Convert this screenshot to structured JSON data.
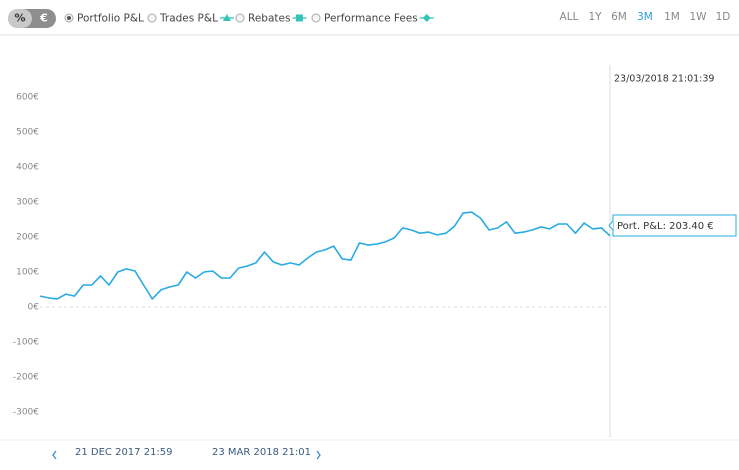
{
  "toggle": {
    "options": [
      "%",
      "€"
    ],
    "active": 0
  },
  "legend": {
    "items": [
      "Portfolio P&L",
      "Trades P&L",
      "Rebates",
      "Performance Fees"
    ],
    "selected": 0
  },
  "ranges": {
    "options": [
      "ALL",
      "1Y",
      "6M",
      "3M",
      "1M",
      "1W",
      "1D"
    ],
    "active": 3
  },
  "chart_data": {
    "type": "line",
    "series": [
      {
        "color": "#29abe2",
        "values": [
          31,
          26,
          23,
          37,
          31,
          63,
          63,
          89,
          63,
          100,
          109,
          103,
          63,
          23,
          49,
          57,
          63,
          100,
          83,
          100,
          103,
          83,
          83,
          111,
          117,
          126,
          157,
          129,
          120,
          126,
          120,
          140,
          157,
          163,
          174,
          137,
          134,
          183,
          177,
          180,
          186,
          197,
          226,
          220,
          211,
          214,
          206,
          211,
          231,
          269,
          271,
          254,
          220,
          226,
          243,
          211,
          214,
          220,
          229,
          223,
          237,
          237,
          211,
          240,
          223,
          226,
          203.4
        ]
      }
    ],
    "ylim": [
      -375,
      750
    ],
    "yticks": [
      {
        "value": -300,
        "label": "-300€"
      },
      {
        "value": -200,
        "label": "-200€"
      },
      {
        "value": -100,
        "label": "-100€"
      },
      {
        "value": 0,
        "label": "0€"
      },
      {
        "value": 100,
        "label": "100€"
      },
      {
        "value": 200,
        "label": "200€"
      },
      {
        "value": 300,
        "label": "300€"
      },
      {
        "value": 400,
        "label": "400€"
      },
      {
        "value": 500,
        "label": "500€"
      },
      {
        "value": 600,
        "label": "600€"
      }
    ],
    "zero_line": true,
    "tooltip": {
      "date": "23/03/2018 21:01:39",
      "label": "Port. P&L: 203.40 €"
    }
  },
  "navigator": {
    "start": "21 DEC 2017 21:59",
    "end": "23 MAR 2018 21:01"
  }
}
